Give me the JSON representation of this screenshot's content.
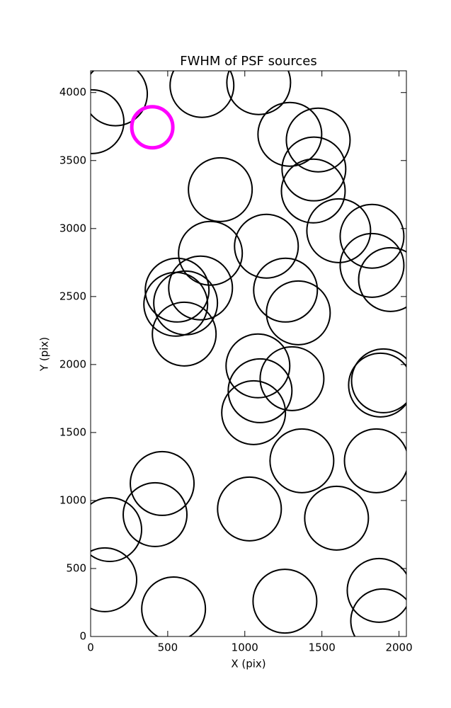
{
  "chart_data": {
    "type": "scatter",
    "title": "FWHM of PSF sources",
    "xlabel": "X (pix)",
    "ylabel": "Y (pix)",
    "x": [
      161,
      9,
      400,
      722,
      1090,
      1292,
      1476,
      1448,
      1444,
      841,
      1609,
      1825,
      1140,
      777,
      1825,
      1945,
      561,
      713,
      616,
      552,
      607,
      1264,
      1347,
      1085,
      1306,
      1099,
      1057,
      1899,
      1880,
      1370,
      1853,
      464,
      124,
      418,
      1030,
      1595,
      92,
      538,
      1260,
      1871,
      1894
    ],
    "y": [
      3990,
      3786,
      3745,
      4052,
      4073,
      3693,
      3651,
      3438,
      3276,
      3286,
      2984,
      2943,
      2870,
      2818,
      2729,
      2625,
      2547,
      2563,
      2453,
      2443,
      2224,
      2547,
      2380,
      1990,
      1896,
      1807,
      1646,
      1880,
      1849,
      1292,
      1292,
      1125,
      786,
      896,
      938,
      870,
      417,
      203,
      260,
      339,
      115
    ],
    "point_colors": [
      "#000000",
      "#000000",
      "#ff00ff",
      "#000000",
      "#000000",
      "#000000",
      "#000000",
      "#000000",
      "#000000",
      "#000000",
      "#000000",
      "#000000",
      "#000000",
      "#000000",
      "#000000",
      "#000000",
      "#000000",
      "#000000",
      "#000000",
      "#000000",
      "#000000",
      "#000000",
      "#000000",
      "#000000",
      "#000000",
      "#000000",
      "#000000",
      "#000000",
      "#000000",
      "#000000",
      "#000000",
      "#000000",
      "#000000",
      "#000000",
      "#000000",
      "#000000",
      "#000000",
      "#000000",
      "#000000",
      "#000000",
      "#000000"
    ],
    "xlim": [
      0,
      2048
    ],
    "ylim": [
      0,
      4160
    ],
    "xticks": [
      0,
      500,
      1000,
      1500,
      2000
    ],
    "yticks": [
      0,
      500,
      1000,
      1500,
      2000,
      2500,
      3000,
      3500,
      4000
    ]
  }
}
